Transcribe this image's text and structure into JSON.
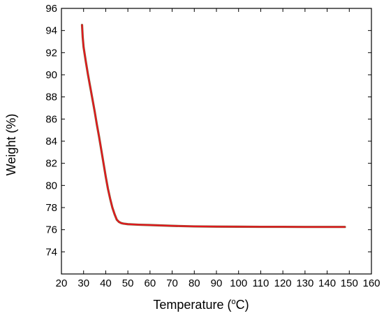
{
  "chart_data": {
    "type": "line",
    "title": "",
    "xlabel_prefix": "Temperature (",
    "xlabel_degree": "o",
    "xlabel_suffix": "C)",
    "ylabel": "Weight (%)",
    "xlim": [
      20,
      160
    ],
    "ylim": [
      72,
      96
    ],
    "x_ticks": [
      20,
      30,
      40,
      50,
      60,
      70,
      80,
      90,
      100,
      110,
      120,
      130,
      140,
      150,
      160
    ],
    "y_ticks": [
      74,
      76,
      78,
      80,
      82,
      84,
      86,
      88,
      90,
      92,
      94,
      96
    ],
    "grid": false,
    "legend": "none",
    "series": [
      {
        "color": "#e8141e",
        "outline_color": "#6b4a1a",
        "x": [
          29.3,
          29.6,
          30.0,
          31.0,
          32.0,
          33.0,
          34.0,
          35.0,
          36.0,
          37.0,
          38.0,
          39.0,
          40.0,
          41.0,
          42.0,
          43.0,
          44.0,
          45.0,
          46.0,
          47.0,
          48.0,
          50.0,
          55.0,
          60.0,
          70.0,
          80.0,
          90.0,
          100.0,
          110.0,
          120.0,
          130.0,
          140.0,
          148.0
        ],
        "y": [
          94.5,
          93.4,
          92.5,
          91.2,
          90.0,
          88.9,
          87.8,
          86.7,
          85.5,
          84.4,
          83.2,
          82.0,
          80.8,
          79.7,
          78.8,
          78.0,
          77.4,
          76.9,
          76.7,
          76.6,
          76.55,
          76.5,
          76.45,
          76.42,
          76.35,
          76.3,
          76.28,
          76.27,
          76.26,
          76.26,
          76.25,
          76.25,
          76.25
        ]
      }
    ]
  }
}
